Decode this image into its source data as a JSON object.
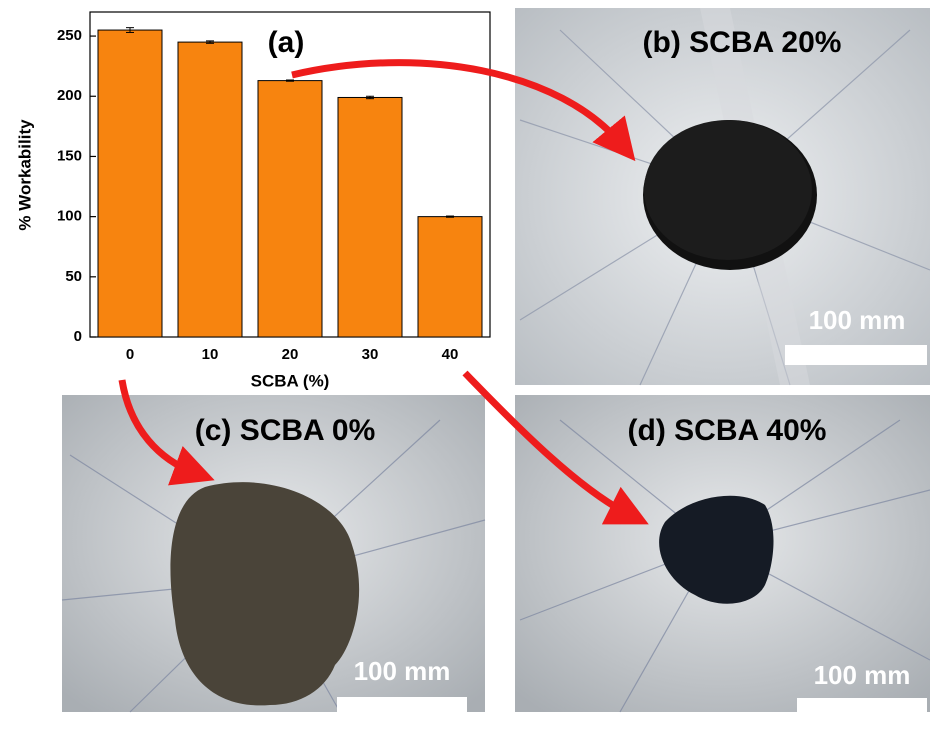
{
  "chart_data": {
    "type": "bar",
    "title": "(a)",
    "categories": [
      "0",
      "10",
      "20",
      "30",
      "40"
    ],
    "values": [
      255,
      245,
      213,
      199,
      100
    ],
    "errors": [
      2,
      1,
      0.5,
      1,
      0.5
    ],
    "color": "#f7840f",
    "x_label": "SCBA (%)",
    "y_label": "% Workability",
    "ylim": [
      0,
      270
    ],
    "yticks": [
      0,
      50,
      100,
      150,
      200,
      250
    ]
  },
  "panels": [
    {
      "label": "(b) SCBA 20%",
      "scale": "100 mm"
    },
    {
      "label": "(c) SCBA 0%",
      "scale": "100 mm"
    },
    {
      "label": "(d) SCBA 40%",
      "scale": "100 mm"
    }
  ]
}
